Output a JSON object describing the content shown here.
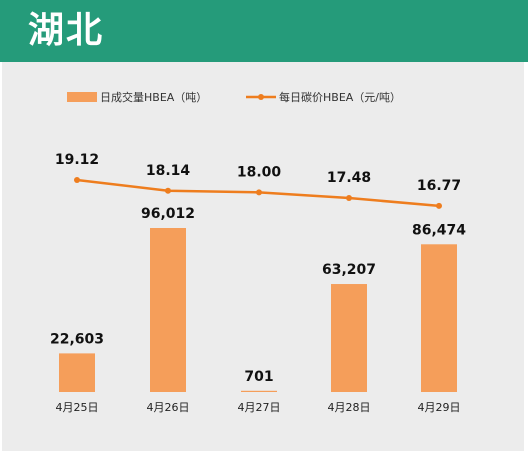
{
  "header": {
    "title": "湖北"
  },
  "colors": {
    "header_bg": "#259b7a",
    "bar": "#f59e5a",
    "line": "#ee7d1e",
    "panel_bg": "#ececec"
  },
  "chart_data": {
    "type": "bar",
    "categories": [
      "4月25日",
      "4月26日",
      "4月27日",
      "4月28日",
      "4月29日"
    ],
    "series": [
      {
        "name": "日成交量HBEA（吨）",
        "type": "bar",
        "axis": "left",
        "values": [
          22603,
          96012,
          701,
          63207,
          86474
        ],
        "labels": [
          "22,603",
          "96,012",
          "701",
          "63,207",
          "86,474"
        ]
      },
      {
        "name": "每日碳价HBEA（元/吨）",
        "type": "line",
        "axis": "right",
        "values": [
          19.12,
          18.14,
          18.0,
          17.48,
          16.77
        ],
        "labels": [
          "19.12",
          "18.14",
          "18.00",
          "17.48",
          "16.77"
        ]
      }
    ],
    "legend": {
      "position": "top",
      "labels": [
        "日成交量HBEA（吨）",
        "每日碳价HBEA（元/吨）"
      ]
    },
    "grid": false,
    "axes_visible": false
  }
}
